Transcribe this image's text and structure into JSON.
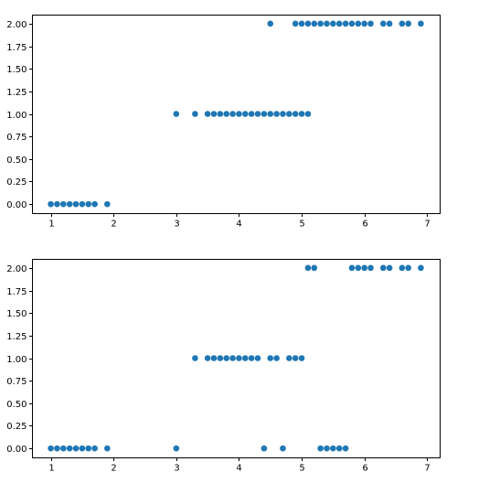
{
  "figure": {
    "marker_color": "#1f77b4"
  },
  "chart_data": [
    {
      "type": "scatter",
      "title": "",
      "xlabel": "",
      "ylabel": "",
      "xlim": [
        0.7,
        7.2
      ],
      "ylim": [
        -0.1,
        2.1
      ],
      "grid": false,
      "xticks": [
        1,
        2,
        3,
        4,
        5,
        6,
        7
      ],
      "xtick_labels": [
        "1",
        "2",
        "3",
        "4",
        "5",
        "6",
        "7"
      ],
      "yticks": [
        0,
        0.25,
        0.5,
        0.75,
        1.0,
        1.25,
        1.5,
        1.75,
        2.0
      ],
      "ytick_labels": [
        "0.00",
        "0.25",
        "0.50",
        "0.75",
        "1.00",
        "1.25",
        "1.50",
        "1.75",
        "2.00"
      ],
      "points": [
        [
          1.0,
          0
        ],
        [
          1.1,
          0
        ],
        [
          1.2,
          0
        ],
        [
          1.3,
          0
        ],
        [
          1.4,
          0
        ],
        [
          1.5,
          0
        ],
        [
          1.6,
          0
        ],
        [
          1.7,
          0
        ],
        [
          1.9,
          0
        ],
        [
          3.0,
          1
        ],
        [
          3.3,
          1
        ],
        [
          3.5,
          1
        ],
        [
          3.6,
          1
        ],
        [
          3.7,
          1
        ],
        [
          3.8,
          1
        ],
        [
          3.9,
          1
        ],
        [
          4.0,
          1
        ],
        [
          4.1,
          1
        ],
        [
          4.2,
          1
        ],
        [
          4.3,
          1
        ],
        [
          4.4,
          1
        ],
        [
          4.5,
          1
        ],
        [
          4.6,
          1
        ],
        [
          4.7,
          1
        ],
        [
          4.8,
          1
        ],
        [
          4.9,
          1
        ],
        [
          5.0,
          1
        ],
        [
          5.1,
          1
        ],
        [
          4.5,
          2
        ],
        [
          4.9,
          2
        ],
        [
          5.0,
          2
        ],
        [
          5.1,
          2
        ],
        [
          5.2,
          2
        ],
        [
          5.3,
          2
        ],
        [
          5.4,
          2
        ],
        [
          5.5,
          2
        ],
        [
          5.6,
          2
        ],
        [
          5.7,
          2
        ],
        [
          5.8,
          2
        ],
        [
          5.9,
          2
        ],
        [
          6.0,
          2
        ],
        [
          6.1,
          2
        ],
        [
          6.3,
          2
        ],
        [
          6.4,
          2
        ],
        [
          6.6,
          2
        ],
        [
          6.7,
          2
        ],
        [
          6.9,
          2
        ]
      ]
    },
    {
      "type": "scatter",
      "title": "",
      "xlabel": "",
      "ylabel": "",
      "xlim": [
        0.7,
        7.2
      ],
      "ylim": [
        -0.1,
        2.1
      ],
      "grid": false,
      "xticks": [
        1,
        2,
        3,
        4,
        5,
        6,
        7
      ],
      "xtick_labels": [
        "1",
        "2",
        "3",
        "4",
        "5",
        "6",
        "7"
      ],
      "yticks": [
        0,
        0.25,
        0.5,
        0.75,
        1.0,
        1.25,
        1.5,
        1.75,
        2.0
      ],
      "ytick_labels": [
        "0.00",
        "0.25",
        "0.50",
        "0.75",
        "1.00",
        "1.25",
        "1.50",
        "1.75",
        "2.00"
      ],
      "points": [
        [
          1.0,
          0
        ],
        [
          1.1,
          0
        ],
        [
          1.2,
          0
        ],
        [
          1.3,
          0
        ],
        [
          1.4,
          0
        ],
        [
          1.5,
          0
        ],
        [
          1.6,
          0
        ],
        [
          1.7,
          0
        ],
        [
          1.9,
          0
        ],
        [
          3.0,
          0
        ],
        [
          4.4,
          0
        ],
        [
          4.7,
          0
        ],
        [
          5.3,
          0
        ],
        [
          5.4,
          0
        ],
        [
          5.5,
          0
        ],
        [
          5.6,
          0
        ],
        [
          5.7,
          0
        ],
        [
          3.3,
          1
        ],
        [
          3.5,
          1
        ],
        [
          3.6,
          1
        ],
        [
          3.7,
          1
        ],
        [
          3.8,
          1
        ],
        [
          3.9,
          1
        ],
        [
          4.0,
          1
        ],
        [
          4.1,
          1
        ],
        [
          4.2,
          1
        ],
        [
          4.3,
          1
        ],
        [
          4.5,
          1
        ],
        [
          4.6,
          1
        ],
        [
          4.8,
          1
        ],
        [
          4.9,
          1
        ],
        [
          5.0,
          1
        ],
        [
          5.1,
          2
        ],
        [
          5.2,
          2
        ],
        [
          5.8,
          2
        ],
        [
          5.9,
          2
        ],
        [
          6.0,
          2
        ],
        [
          6.1,
          2
        ],
        [
          6.3,
          2
        ],
        [
          6.4,
          2
        ],
        [
          6.6,
          2
        ],
        [
          6.7,
          2
        ],
        [
          6.9,
          2
        ]
      ]
    }
  ]
}
